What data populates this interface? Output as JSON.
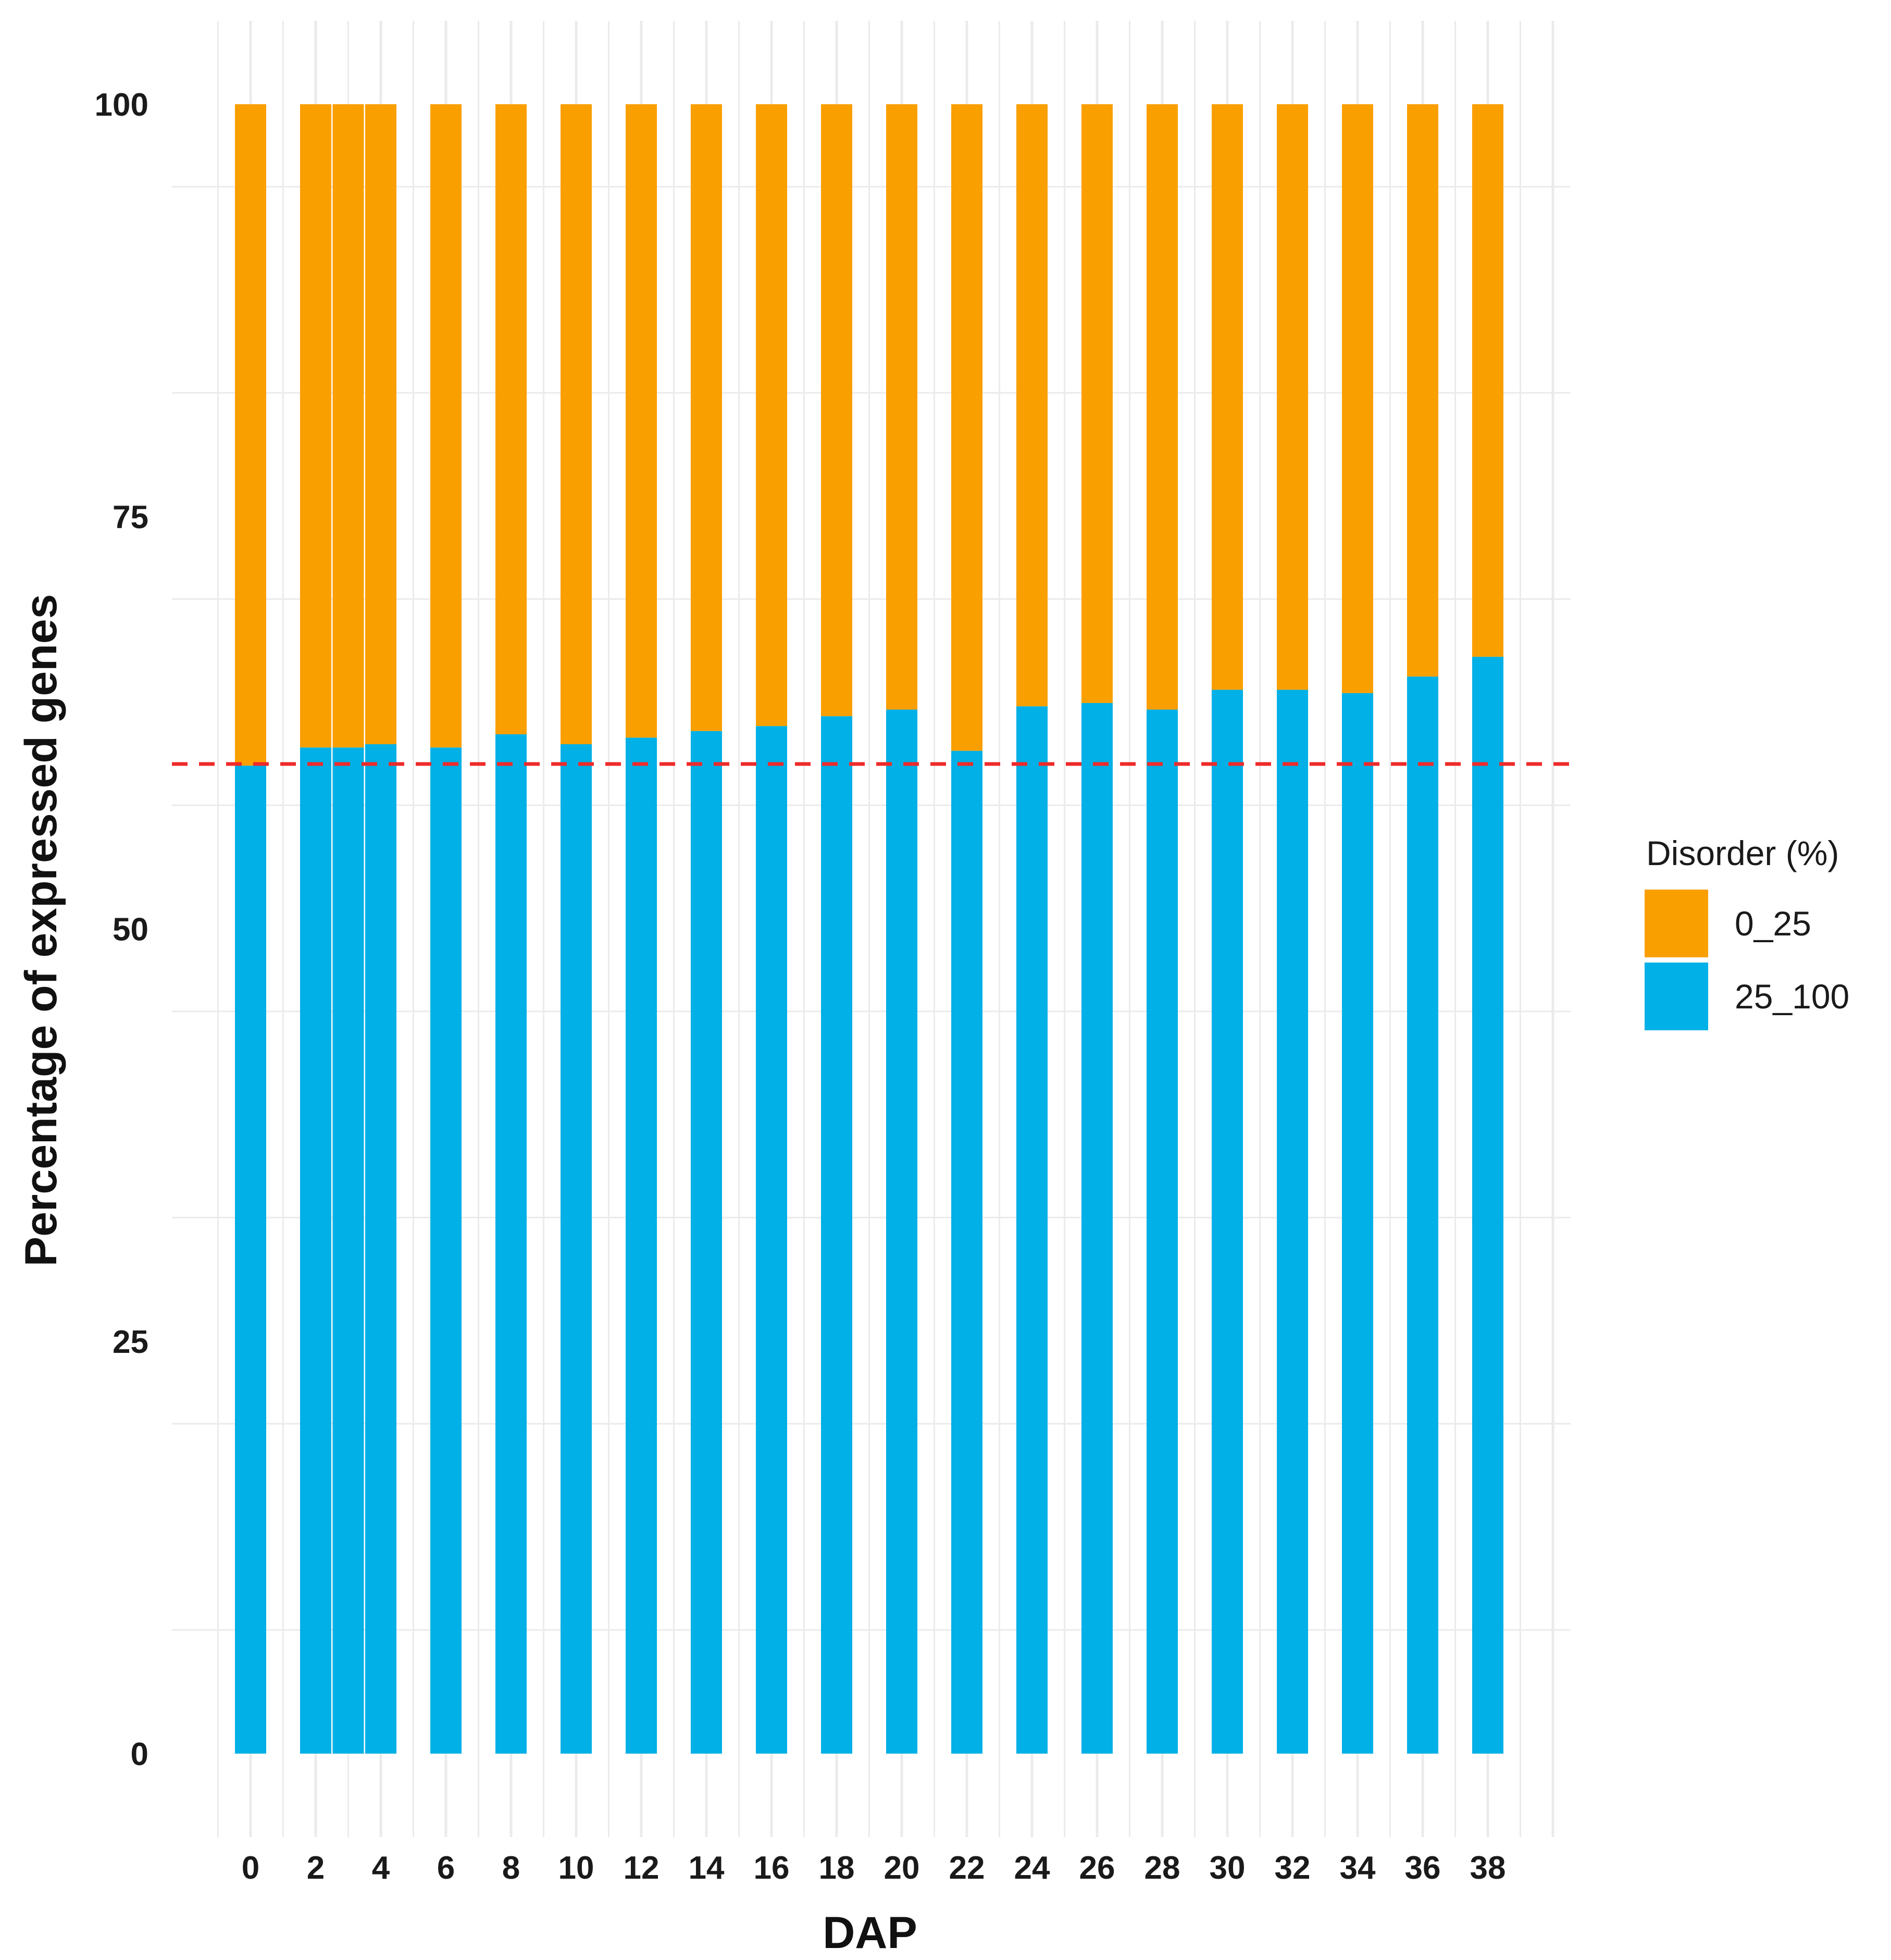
{
  "chart_data": {
    "type": "bar",
    "stacked": true,
    "xlabel": "DAP",
    "ylabel": "Percentage of expressed genes",
    "ylim": [
      0,
      100
    ],
    "yticks": [
      0,
      25,
      50,
      75,
      100
    ],
    "x_tick_labels": [
      "0",
      "2",
      "4",
      "6",
      "8",
      "10",
      "12",
      "14",
      "16",
      "18",
      "20",
      "22",
      "24",
      "26",
      "28",
      "30",
      "32",
      "34",
      "36",
      "38"
    ],
    "categories": [
      0,
      2,
      3,
      4,
      6,
      8,
      10,
      12,
      14,
      16,
      18,
      20,
      22,
      24,
      26,
      28,
      30,
      32,
      34,
      36,
      38
    ],
    "series": [
      {
        "name": "25_100",
        "color": "#00b0e6",
        "values": [
          59.9,
          61.0,
          61.0,
          61.2,
          61.0,
          61.8,
          61.2,
          61.6,
          62.0,
          62.3,
          62.9,
          63.3,
          60.8,
          63.5,
          63.7,
          63.3,
          64.5,
          64.5,
          64.3,
          65.3,
          66.5
        ]
      },
      {
        "name": "0_25",
        "color": "#fa9f00",
        "values": [
          40.1,
          39.0,
          39.0,
          38.8,
          39.0,
          38.2,
          38.8,
          38.4,
          38.0,
          37.7,
          37.1,
          36.7,
          39.2,
          36.5,
          36.3,
          36.7,
          35.5,
          35.5,
          35.7,
          34.7,
          33.5
        ]
      }
    ],
    "reference_line": {
      "y": 60,
      "color": "#ee2a2a",
      "style": "dashed"
    },
    "legend": {
      "title": "Disorder (%)",
      "position": "right",
      "entries": [
        {
          "label": "0_25",
          "color": "#fa9f00"
        },
        {
          "label": "25_100",
          "color": "#00b0e6"
        }
      ]
    },
    "grid": true
  }
}
